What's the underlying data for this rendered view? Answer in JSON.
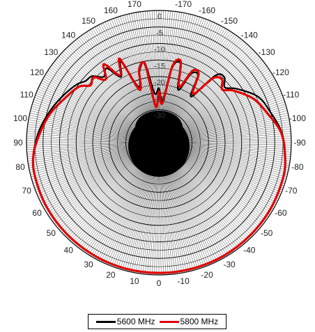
{
  "chart_data": {
    "type": "polar-line",
    "title": "",
    "angle_unit": "deg",
    "angle_ticks": [
      0,
      10,
      20,
      30,
      40,
      50,
      60,
      70,
      80,
      90,
      100,
      110,
      120,
      130,
      140,
      150,
      160,
      170,
      -170,
      -160,
      -150,
      -140,
      -130,
      -120,
      -110,
      -100,
      -90,
      -80,
      -70,
      -60,
      -50,
      -40,
      -30,
      -20,
      -10
    ],
    "angle_labels": [
      "0",
      "10",
      "20",
      "30",
      "40",
      "50",
      "60",
      "70",
      "80",
      "90",
      "100",
      "110",
      "120",
      "130",
      "140",
      "150",
      "160",
      "170",
      "-170",
      "-160",
      "-150",
      "-140",
      "-130",
      "-120",
      "-110",
      "-100",
      "-90",
      "-80",
      "-70",
      "-60",
      "-50",
      "-40",
      "-30",
      "-20",
      "-10"
    ],
    "radial_ticks": [
      0,
      -5,
      -10,
      -15,
      -20,
      -25,
      -30
    ],
    "radial_labels": [
      "0",
      "-5",
      "-10",
      "-15",
      "-20",
      "-25",
      "-30"
    ],
    "rlim": [
      -40,
      0
    ],
    "zero_angle": "bottom",
    "grid": true,
    "legend_position": "bottom-center",
    "series": [
      {
        "name": "5600 MHz",
        "color": "#000000",
        "angles": [
          0,
          15,
          30,
          45,
          60,
          75,
          85,
          95,
          105,
          115,
          125,
          130,
          135,
          140,
          145,
          150,
          155,
          160,
          165,
          170,
          175,
          180,
          -175,
          -170,
          -165,
          -160,
          -155,
          -150,
          -145,
          -140,
          -135,
          -130,
          -125,
          -115,
          -105,
          -95,
          -85,
          -75,
          -60,
          -45,
          -30,
          -15
        ],
        "values": [
          -0.6,
          -0.6,
          -0.7,
          -0.8,
          -0.9,
          -1.2,
          -2.0,
          -3.5,
          -5.5,
          -7.5,
          -9.5,
          -11.0,
          -11.5,
          -14.0,
          -12.5,
          -17.0,
          -13.0,
          -22.0,
          -17.5,
          -15.5,
          -25.0,
          -23.5,
          -27.0,
          -17.0,
          -15.0,
          -23.0,
          -17.0,
          -16.5,
          -23.0,
          -13.5,
          -12.0,
          -14.0,
          -11.5,
          -7.0,
          -5.0,
          -2.8,
          -1.7,
          -1.0,
          -0.8,
          -0.7,
          -0.6,
          -0.6
        ]
      },
      {
        "name": "5800 MHz",
        "color": "#e00000",
        "angles": [
          0,
          15,
          30,
          45,
          60,
          75,
          85,
          95,
          105,
          115,
          125,
          130,
          135,
          140,
          145,
          150,
          155,
          160,
          165,
          170,
          175,
          180,
          -175,
          -170,
          -165,
          -160,
          -155,
          -150,
          -145,
          -140,
          -135,
          -130,
          -125,
          -115,
          -105,
          -95,
          -85,
          -75,
          -60,
          -45,
          -30,
          -15
        ],
        "values": [
          -0.6,
          -0.6,
          -0.7,
          -0.8,
          -0.9,
          -1.2,
          -2.0,
          -4.0,
          -6.0,
          -8.5,
          -10.5,
          -13.0,
          -12.0,
          -15.0,
          -11.0,
          -16.5,
          -12.0,
          -23.0,
          -17.0,
          -16.0,
          -29.0,
          -24.5,
          -28.0,
          -16.5,
          -14.5,
          -22.0,
          -16.0,
          -16.0,
          -22.0,
          -14.5,
          -13.0,
          -15.0,
          -12.5,
          -8.5,
          -6.0,
          -3.0,
          -1.8,
          -1.0,
          -0.8,
          -0.7,
          -0.6,
          -0.6
        ]
      }
    ]
  }
}
